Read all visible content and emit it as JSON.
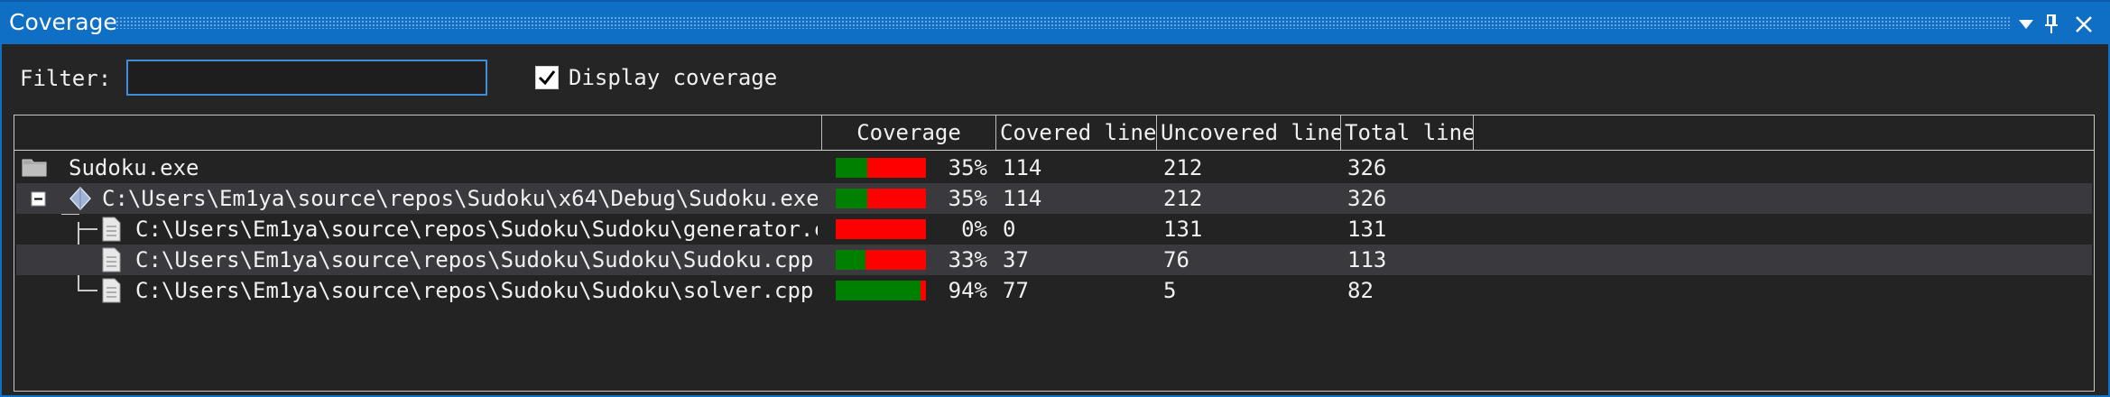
{
  "window": {
    "title": "Coverage"
  },
  "filter": {
    "label": "Filter:",
    "value": ""
  },
  "display_coverage": {
    "label": "Display coverage",
    "checked": true
  },
  "columns": [
    "Coverage",
    "Covered line",
    "Uncovered line",
    "Total line"
  ],
  "rows": [
    {
      "name": "Sudoku.exe",
      "level": 0,
      "icon": "folder-icon",
      "coverage_fraction": 0.35,
      "coverage": "35%",
      "covered": "114",
      "uncovered": "212",
      "total": "326"
    },
    {
      "name": "C:\\Users\\Em1ya\\source\\repos\\Sudoku\\x64\\Debug\\Sudoku.exe",
      "level": 1,
      "icon": "module-icon",
      "coverage_fraction": 0.35,
      "coverage": "35%",
      "covered": "114",
      "uncovered": "212",
      "total": "326"
    },
    {
      "name": "C:\\Users\\Em1ya\\source\\repos\\Sudoku\\Sudoku\\generator.c",
      "level": 2,
      "icon": "file-icon",
      "coverage_fraction": 0.0,
      "coverage": "0%",
      "covered": "0",
      "uncovered": "131",
      "total": "131"
    },
    {
      "name": "C:\\Users\\Em1ya\\source\\repos\\Sudoku\\Sudoku\\Sudoku.cpp",
      "level": 2,
      "icon": "file-icon",
      "coverage_fraction": 0.33,
      "coverage": "33%",
      "covered": "37",
      "uncovered": "76",
      "total": "113"
    },
    {
      "name": "C:\\Users\\Em1ya\\source\\repos\\Sudoku\\Sudoku\\solver.cpp",
      "level": 2,
      "icon": "file-icon",
      "coverage_fraction": 0.94,
      "coverage": "94%",
      "covered": "77",
      "uncovered": "5",
      "total": "82"
    }
  ],
  "colors": {
    "covered": "#008000",
    "uncovered": "#ff0000",
    "title_bar": "#0f6fc5",
    "selected_row": "#3a3a3e"
  }
}
